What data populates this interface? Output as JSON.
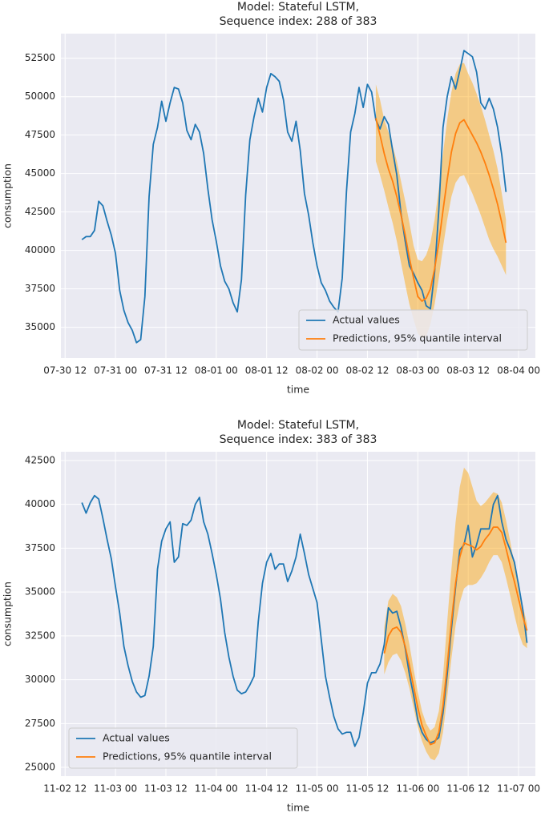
{
  "chart_data": [
    {
      "type": "line",
      "title": [
        "Model: Stateful LSTM,",
        "Sequence index: 288 of 383"
      ],
      "x_label": "time",
      "y_label": "consumption",
      "xlim": [
        "07-30 11",
        "08-04 04"
      ],
      "xticks": [
        "07-30 12",
        "07-31 00",
        "07-31 12",
        "08-01 00",
        "08-01 12",
        "08-02 00",
        "08-02 12",
        "08-03 00",
        "08-03 12",
        "08-04 00"
      ],
      "ylim": [
        33000,
        54100
      ],
      "yticks": [
        35000,
        37500,
        40000,
        42500,
        45000,
        47500,
        50000,
        52500
      ],
      "grid": true,
      "legend": "lower right",
      "series": [
        {
          "name": "Actual values",
          "color": "#1f77b4",
          "x": [
            "07-30 16",
            "07-30 17",
            "07-30 18",
            "07-30 19",
            "07-30 20",
            "07-30 21",
            "07-30 22",
            "07-30 23",
            "07-31 00",
            "07-31 01",
            "07-31 02",
            "07-31 03",
            "07-31 04",
            "07-31 05",
            "07-31 06",
            "07-31 07",
            "07-31 08",
            "07-31 09",
            "07-31 10",
            "07-31 11",
            "07-31 12",
            "07-31 13",
            "07-31 14",
            "07-31 15",
            "07-31 16",
            "07-31 17",
            "07-31 18",
            "07-31 19",
            "07-31 20",
            "07-31 21",
            "07-31 22",
            "07-31 23",
            "08-01 00",
            "08-01 01",
            "08-01 02",
            "08-01 03",
            "08-01 04",
            "08-01 05",
            "08-01 06",
            "08-01 07",
            "08-01 08",
            "08-01 09",
            "08-01 10",
            "08-01 11",
            "08-01 12",
            "08-01 13",
            "08-01 14",
            "08-01 15",
            "08-01 16",
            "08-01 17",
            "08-01 18",
            "08-01 19",
            "08-01 20",
            "08-01 21",
            "08-01 22",
            "08-01 23",
            "08-02 00",
            "08-02 01",
            "08-02 02",
            "08-02 03",
            "08-02 04",
            "08-02 05",
            "08-02 06",
            "08-02 07",
            "08-02 08",
            "08-02 09",
            "08-02 10",
            "08-02 11",
            "08-02 12",
            "08-02 13",
            "08-02 14",
            "08-02 15",
            "08-02 16",
            "08-02 17",
            "08-02 18",
            "08-02 19",
            "08-02 20",
            "08-02 21",
            "08-02 22",
            "08-02 23",
            "08-03 00",
            "08-03 01",
            "08-03 02",
            "08-03 03",
            "08-03 04",
            "08-03 05",
            "08-03 06",
            "08-03 07",
            "08-03 08",
            "08-03 09",
            "08-03 10",
            "08-03 11",
            "08-03 12",
            "08-03 13",
            "08-03 14",
            "08-03 15",
            "08-03 16",
            "08-03 17",
            "08-03 18",
            "08-03 19",
            "08-03 20",
            "08-03 21"
          ],
          "values": [
            40700,
            40900,
            40900,
            41300,
            43200,
            42900,
            41900,
            41000,
            39800,
            37400,
            36100,
            35300,
            34800,
            34000,
            34200,
            37000,
            43500,
            46900,
            48000,
            49700,
            48400,
            49600,
            50600,
            50500,
            49600,
            47800,
            47200,
            48200,
            47700,
            46300,
            44000,
            42000,
            40600,
            39000,
            38000,
            37500,
            36600,
            36000,
            38100,
            43600,
            47200,
            48700,
            49900,
            49000,
            50600,
            51500,
            51300,
            51000,
            49800,
            47700,
            47100,
            48400,
            46500,
            43700,
            42300,
            40500,
            39000,
            37900,
            37400,
            36700,
            36300,
            36000,
            38200,
            43800,
            47700,
            48900,
            50600,
            49300,
            50800,
            50300,
            48500,
            47900,
            48700,
            48200,
            46500,
            44900,
            42400,
            40600,
            39000,
            38500,
            37900,
            37400,
            36400,
            36200,
            38600,
            42600,
            48000,
            50000,
            51300,
            50500,
            51700,
            53000,
            52800,
            52600,
            51600,
            49600,
            49200,
            49900,
            49200,
            48000,
            46200,
            43800
          ]
        },
        {
          "name": "Predictions, 95% quantile interval",
          "color": "#ff7f0e",
          "band_color": "#ffa500",
          "band_alpha": 0.45,
          "x": [
            "08-02 14",
            "08-02 15",
            "08-02 16",
            "08-02 17",
            "08-02 18",
            "08-02 19",
            "08-02 20",
            "08-02 21",
            "08-02 22",
            "08-02 23",
            "08-03 00",
            "08-03 01",
            "08-03 02",
            "08-03 03",
            "08-03 04",
            "08-03 05",
            "08-03 06",
            "08-03 07",
            "08-03 08",
            "08-03 09",
            "08-03 10",
            "08-03 11",
            "08-03 12",
            "08-03 13",
            "08-03 14",
            "08-03 15",
            "08-03 16",
            "08-03 17",
            "08-03 18",
            "08-03 19",
            "08-03 20",
            "08-03 21"
          ],
          "values": [
            48600,
            47500,
            46300,
            45300,
            44500,
            43500,
            42300,
            41000,
            39500,
            38200,
            37000,
            36700,
            36900,
            37500,
            38800,
            40500,
            42600,
            44600,
            46400,
            47600,
            48300,
            48500,
            48000,
            47500,
            47000,
            46400,
            45700,
            44900,
            44000,
            43000,
            41800,
            40500
          ],
          "lower": [
            45800,
            44900,
            43900,
            42800,
            41800,
            40600,
            39200,
            37800,
            36500,
            35500,
            34600,
            34300,
            34400,
            35200,
            36500,
            38200,
            40200,
            42000,
            43500,
            44400,
            44800,
            44900,
            44300,
            43700,
            43000,
            42300,
            41500,
            40700,
            40100,
            39600,
            39000,
            38400
          ],
          "upper": [
            50800,
            49800,
            48500,
            47700,
            46800,
            45800,
            44500,
            43200,
            41800,
            40300,
            39400,
            39300,
            39700,
            40500,
            42000,
            44000,
            46300,
            48500,
            50300,
            51500,
            52100,
            52200,
            51500,
            50900,
            50200,
            49400,
            48500,
            47500,
            46500,
            45300,
            43700,
            42000
          ]
        }
      ]
    },
    {
      "type": "line",
      "title": [
        "Model: Stateful LSTM,",
        "Sequence index: 383 of 383"
      ],
      "x_label": "time",
      "y_label": "consumption",
      "xlim": [
        "11-02 11",
        "11-07 04"
      ],
      "xticks": [
        "11-02 12",
        "11-03 00",
        "11-03 12",
        "11-04 00",
        "11-04 12",
        "11-05 00",
        "11-05 12",
        "11-06 00",
        "11-06 12",
        "11-07 00"
      ],
      "ylim": [
        24500,
        43000
      ],
      "yticks": [
        25000,
        27500,
        30000,
        32500,
        35000,
        37500,
        40000,
        42500
      ],
      "grid": true,
      "legend": "lower left",
      "series": [
        {
          "name": "Actual values",
          "color": "#1f77b4",
          "x": [
            "11-02 16",
            "11-02 17",
            "11-02 18",
            "11-02 19",
            "11-02 20",
            "11-02 21",
            "11-02 22",
            "11-02 23",
            "11-03 00",
            "11-03 01",
            "11-03 02",
            "11-03 03",
            "11-03 04",
            "11-03 05",
            "11-03 06",
            "11-03 07",
            "11-03 08",
            "11-03 09",
            "11-03 10",
            "11-03 11",
            "11-03 12",
            "11-03 13",
            "11-03 14",
            "11-03 15",
            "11-03 16",
            "11-03 17",
            "11-03 18",
            "11-03 19",
            "11-03 20",
            "11-03 21",
            "11-03 22",
            "11-03 23",
            "11-04 00",
            "11-04 01",
            "11-04 02",
            "11-04 03",
            "11-04 04",
            "11-04 05",
            "11-04 06",
            "11-04 07",
            "11-04 08",
            "11-04 09",
            "11-04 10",
            "11-04 11",
            "11-04 12",
            "11-04 13",
            "11-04 14",
            "11-04 15",
            "11-04 16",
            "11-04 17",
            "11-04 18",
            "11-04 19",
            "11-04 20",
            "11-04 21",
            "11-04 22",
            "11-04 23",
            "11-05 00",
            "11-05 01",
            "11-05 02",
            "11-05 03",
            "11-05 04",
            "11-05 05",
            "11-05 06",
            "11-05 07",
            "11-05 08",
            "11-05 09",
            "11-05 10",
            "11-05 11",
            "11-05 12",
            "11-05 13",
            "11-05 14",
            "11-05 15",
            "11-05 16",
            "11-05 17",
            "11-05 18",
            "11-05 19",
            "11-05 20",
            "11-05 21",
            "11-05 22",
            "11-05 23",
            "11-06 00",
            "11-06 01",
            "11-06 02",
            "11-06 03",
            "11-06 04",
            "11-06 05",
            "11-06 06",
            "11-06 07",
            "11-06 08",
            "11-06 09",
            "11-06 10",
            "11-06 11",
            "11-06 12",
            "11-06 13",
            "11-06 14",
            "11-06 15",
            "11-06 16",
            "11-06 17",
            "11-06 18",
            "11-06 19",
            "11-06 20",
            "11-06 21",
            "11-06 22",
            "11-06 23",
            "11-07 00",
            "11-07 01",
            "11-07 02"
          ],
          "values": [
            40100,
            39500,
            40100,
            40500,
            40300,
            39200,
            38000,
            36900,
            35300,
            33800,
            31900,
            30800,
            29900,
            29300,
            29000,
            29100,
            30200,
            31900,
            36300,
            37900,
            38600,
            39000,
            36700,
            37000,
            38900,
            38800,
            39100,
            40000,
            40400,
            39000,
            38300,
            37200,
            36000,
            34600,
            32700,
            31300,
            30200,
            29400,
            29200,
            29300,
            29700,
            30200,
            33300,
            35500,
            36700,
            37200,
            36300,
            36600,
            36600,
            35600,
            36200,
            37000,
            38300,
            37200,
            36000,
            35200,
            34400,
            32300,
            30200,
            29000,
            27900,
            27200,
            26900,
            27000,
            27000,
            26200,
            26700,
            28100,
            29800,
            30400,
            30400,
            30900,
            32000,
            34100,
            33800,
            33900,
            33000,
            31800,
            30300,
            29100,
            27700,
            27000,
            26600,
            26400,
            26500,
            26700,
            28100,
            30300,
            32900,
            35300,
            37400,
            37700,
            38800,
            37000,
            37700,
            38600,
            38600,
            38600,
            40000,
            40500,
            39000,
            38000,
            37400,
            36700,
            35400,
            34000,
            32100
          ]
        },
        {
          "name": "Predictions, 95% quantile interval",
          "color": "#ff7f0e",
          "band_color": "#ffa500",
          "band_alpha": 0.45,
          "x": [
            "11-05 16",
            "11-05 17",
            "11-05 18",
            "11-05 19",
            "11-05 20",
            "11-05 21",
            "11-05 22",
            "11-05 23",
            "11-06 00",
            "11-06 01",
            "11-06 02",
            "11-06 03",
            "11-06 04",
            "11-06 05",
            "11-06 06",
            "11-06 07",
            "11-06 08",
            "11-06 09",
            "11-06 10",
            "11-06 11",
            "11-06 12",
            "11-06 13",
            "11-06 14",
            "11-06 15",
            "11-06 16",
            "11-06 17",
            "11-06 18",
            "11-06 19",
            "11-06 20",
            "11-06 21",
            "11-06 22",
            "11-06 23",
            "11-07 00",
            "11-07 01",
            "11-07 02"
          ],
          "values": [
            31500,
            32500,
            32900,
            33000,
            32700,
            31900,
            30800,
            29600,
            28400,
            27400,
            26800,
            26300,
            26400,
            27000,
            28500,
            30800,
            33300,
            35500,
            37000,
            37800,
            37700,
            37600,
            37400,
            37600,
            38000,
            38300,
            38700,
            38700,
            38400,
            37500,
            36500,
            35600,
            34600,
            33600,
            32800
          ],
          "lower": [
            30300,
            31000,
            31400,
            31500,
            31100,
            30400,
            29500,
            28400,
            27300,
            26500,
            25900,
            25500,
            25400,
            25800,
            27000,
            29000,
            31200,
            33100,
            34400,
            35200,
            35400,
            35400,
            35500,
            35800,
            36200,
            36700,
            37100,
            37100,
            36700,
            35800,
            34800,
            33700,
            32700,
            32000,
            31800
          ],
          "upper": [
            33000,
            34500,
            34900,
            34700,
            34200,
            33200,
            32000,
            30600,
            29300,
            28200,
            27500,
            27100,
            27300,
            28200,
            30200,
            33300,
            36300,
            39000,
            41000,
            42100,
            41800,
            41000,
            40200,
            39900,
            40100,
            40400,
            40700,
            40600,
            40100,
            39100,
            37900,
            36600,
            35300,
            34200,
            33200
          ]
        }
      ]
    }
  ]
}
